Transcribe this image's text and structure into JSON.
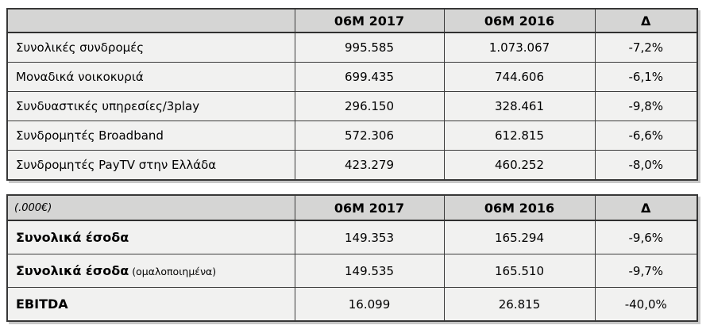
{
  "colors": {
    "header_bg": "#d5d5d4",
    "row_bg": "#f1f1f0",
    "border": "#3c3c3c",
    "shadow": "#c7c7c7",
    "text": "#000000"
  },
  "table1": {
    "header": {
      "col0": "",
      "col1": "06M 2017",
      "col2": "06M 2016",
      "col3": "Δ"
    },
    "rows": [
      {
        "label": "Συνολικές συνδρομές",
        "v2017": "995.585",
        "v2016": "1.073.067",
        "delta": "-7,2%"
      },
      {
        "label": "Μοναδικά νοικοκυριά",
        "v2017": "699.435",
        "v2016": "744.606",
        "delta": "-6,1%"
      },
      {
        "label": "Συνδυαστικές υπηρεσίες/3play",
        "v2017": "296.150",
        "v2016": "328.461",
        "delta": "-9,8%"
      },
      {
        "label": "Συνδρομητές Broadband",
        "v2017": "572.306",
        "v2016": "612.815",
        "delta": "-6,6%"
      },
      {
        "label": "Συνδρομητές PayTV στην Ελλάδα",
        "v2017": "423.279",
        "v2016": "460.252",
        "delta": "-8,0%"
      }
    ]
  },
  "table2": {
    "header": {
      "col0": "(.000€)",
      "col1": "06M 2017",
      "col2": "06M 2016",
      "col3": "Δ"
    },
    "rows": [
      {
        "label": "Συνολικά έσοδα",
        "suffix": "",
        "v2017": "149.353",
        "v2016": "165.294",
        "delta": "-9,6%"
      },
      {
        "label": "Συνολικά έσοδα",
        "suffix": "(ομαλοποιημένα)",
        "v2017": "149.535",
        "v2016": "165.510",
        "delta": "-9,7%"
      },
      {
        "label": "EBITDA",
        "suffix": "",
        "v2017": "16.099",
        "v2016": "26.815",
        "delta": "-40,0%"
      }
    ]
  },
  "chart_data": [
    {
      "type": "table",
      "columns": [
        "",
        "06M 2017",
        "06M 2016",
        "Δ"
      ],
      "rows": [
        {
          "label": "Συνολικές συνδρομές",
          "m2017": 995585,
          "m2016": 1073067,
          "delta_pct": -7.2
        },
        {
          "label": "Μοναδικά νοικοκυριά",
          "m2017": 699435,
          "m2016": 744606,
          "delta_pct": -6.1
        },
        {
          "label": "Συνδυαστικές υπηρεσίες/3play",
          "m2017": 296150,
          "m2016": 328461,
          "delta_pct": -9.8
        },
        {
          "label": "Συνδρομητές Broadband",
          "m2017": 572306,
          "m2016": 612815,
          "delta_pct": -6.6
        },
        {
          "label": "Συνδρομητές PayTV στην Ελλάδα",
          "m2017": 423279,
          "m2016": 460252,
          "delta_pct": -8.0
        }
      ]
    },
    {
      "type": "table",
      "unit_note": "(.000€)",
      "columns": [
        "(.000€)",
        "06M 2017",
        "06M 2016",
        "Δ"
      ],
      "rows": [
        {
          "label": "Συνολικά έσοδα",
          "m2017": 149353,
          "m2016": 165294,
          "delta_pct": -9.6
        },
        {
          "label": "Συνολικά έσοδα (ομαλοποιημένα)",
          "m2017": 149535,
          "m2016": 165510,
          "delta_pct": -9.7
        },
        {
          "label": "EBITDA",
          "m2017": 16099,
          "m2016": 26815,
          "delta_pct": -40.0
        }
      ]
    }
  ]
}
